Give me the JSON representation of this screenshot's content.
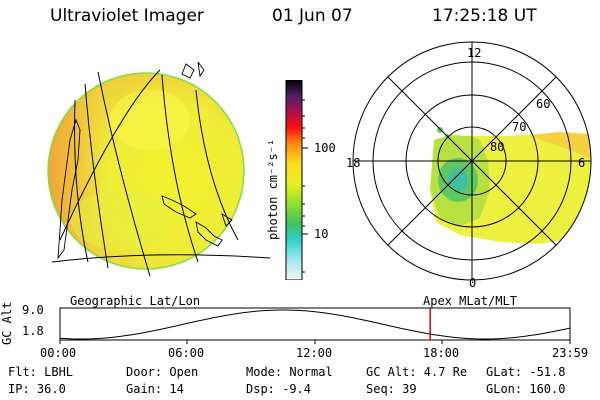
{
  "header": {
    "title": "Ultraviolet Imager",
    "date": "01 Jun 07",
    "time": "17:25:18 UT"
  },
  "colorbar": {
    "unit_label": "photon cm⁻²s⁻¹",
    "tick_100": "100",
    "tick_10": "10"
  },
  "panels": {
    "left_caption": "Geographic Lat/Lon",
    "right_caption": "Apex MLat/MLT"
  },
  "polar": {
    "mlt_labels": {
      "top": "12",
      "left": "18",
      "right": "6",
      "bottom": "0"
    },
    "lat_labels": [
      "60",
      "70",
      "80"
    ]
  },
  "altitude_plot": {
    "ylabel": "GC Alt",
    "ymax": "9.0",
    "ymin": "1.8",
    "x_ticks": [
      "00:00",
      "06:00",
      "12:00",
      "18:00",
      "23:59"
    ],
    "current_time_hours": 17.42
  },
  "status": {
    "flt": "Flt: LBHL",
    "ip": "IP: 36.0",
    "door": "Door: Open",
    "gain": "Gain: 14",
    "mode": "Mode: Normal",
    "dsp": "Dsp:   -9.4",
    "gcalt": "GC Alt: 4.7 Re",
    "seq": "Seq: 39",
    "glat": "GLat:  -51.8",
    "glon": "GLon: 160.0"
  },
  "colors": {
    "trace": "#000000",
    "marker": "#e00000",
    "background": "#ffffff"
  }
}
